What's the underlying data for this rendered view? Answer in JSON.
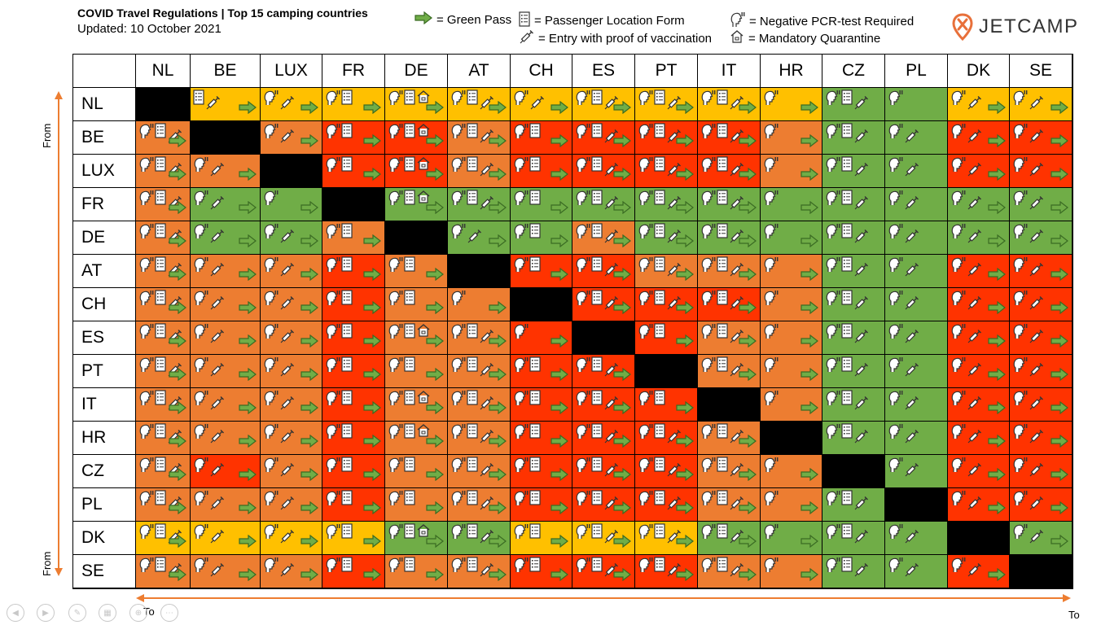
{
  "header": {
    "title": "COVID Travel Regulations | Top 15 camping countries",
    "updated": "Updated: 10 October 2021"
  },
  "legend": {
    "green_pass": "= Green Pass",
    "plf": "= Passenger Location Form",
    "vaccination": "= Entry with proof of vaccination",
    "pcr": "= Negative PCR-test Required",
    "quarantine": "= Mandatory Quarantine"
  },
  "logo": {
    "text": "JETCAMP"
  },
  "axis": {
    "from": "From",
    "to": "To"
  },
  "colors": {
    "yellow": "#FFC000",
    "orange": "#ED7D31",
    "red": "#FF3300",
    "green": "#70AD47",
    "black": "#000000",
    "arrow_fill": "#70AD47",
    "arrow_stroke": "#3A6B23",
    "logo_accent": "#E8703A"
  },
  "chart_data": {
    "type": "table",
    "title": "COVID Travel Regulations | Top 15 camping countries",
    "row_axis": "From",
    "col_axis": "To",
    "countries": [
      "NL",
      "BE",
      "LUX",
      "FR",
      "DE",
      "AT",
      "CH",
      "ES",
      "PT",
      "IT",
      "HR",
      "CZ",
      "PL",
      "DK",
      "SE"
    ],
    "color_key": {
      "Y": "yellow",
      "O": "orange",
      "R": "red",
      "G": "green",
      "X": "not applicable"
    },
    "icon_key": {
      "T": "negative PCR-test required",
      "F": "passenger location form",
      "V": "entry with proof of vaccination",
      "Q": "mandatory quarantine",
      "A": "green pass"
    },
    "rows": [
      {
        "from": "NL",
        "cells": [
          [
            "X",
            ""
          ],
          [
            "Y",
            "FVA"
          ],
          [
            "Y",
            "TVA"
          ],
          [
            "Y",
            "TFA"
          ],
          [
            "Y",
            "TFQA"
          ],
          [
            "Y",
            "TFVA"
          ],
          [
            "Y",
            "TVA"
          ],
          [
            "Y",
            "TFVA"
          ],
          [
            "Y",
            "TFVA"
          ],
          [
            "Y",
            "TFVA"
          ],
          [
            "Y",
            "TA"
          ],
          [
            "G",
            "TFV"
          ],
          [
            "G",
            "T"
          ],
          [
            "Y",
            "TVA"
          ],
          [
            "Y",
            "TVA"
          ]
        ]
      },
      {
        "from": "BE",
        "cells": [
          [
            "O",
            "TFVA"
          ],
          [
            "X",
            ""
          ],
          [
            "O",
            "TVA"
          ],
          [
            "R",
            "TFA"
          ],
          [
            "R",
            "TFQA"
          ],
          [
            "O",
            "TFVA"
          ],
          [
            "R",
            "TFA"
          ],
          [
            "R",
            "TFVA"
          ],
          [
            "R",
            "TFVA"
          ],
          [
            "R",
            "TFVA"
          ],
          [
            "O",
            "TA"
          ],
          [
            "G",
            "TFV"
          ],
          [
            "G",
            "TV"
          ],
          [
            "R",
            "TVA"
          ],
          [
            "R",
            "TVA"
          ]
        ]
      },
      {
        "from": "LUX",
        "cells": [
          [
            "O",
            "TFVA"
          ],
          [
            "O",
            "TVA"
          ],
          [
            "X",
            ""
          ],
          [
            "R",
            "TFA"
          ],
          [
            "R",
            "TFQA"
          ],
          [
            "O",
            "TFVA"
          ],
          [
            "R",
            "TFA"
          ],
          [
            "R",
            "TFVA"
          ],
          [
            "R",
            "TFVA"
          ],
          [
            "R",
            "TFVA"
          ],
          [
            "O",
            "TA"
          ],
          [
            "G",
            "TFV"
          ],
          [
            "G",
            "TV"
          ],
          [
            "R",
            "TVA"
          ],
          [
            "R",
            "TVA"
          ]
        ]
      },
      {
        "from": "FR",
        "cells": [
          [
            "O",
            "TFVA"
          ],
          [
            "G",
            "TVA"
          ],
          [
            "G",
            "TA"
          ],
          [
            "X",
            ""
          ],
          [
            "G",
            "TFQA"
          ],
          [
            "G",
            "TFVA"
          ],
          [
            "G",
            "TFA"
          ],
          [
            "G",
            "TFVA"
          ],
          [
            "G",
            "TFVA"
          ],
          [
            "G",
            "TFVA"
          ],
          [
            "G",
            "TA"
          ],
          [
            "G",
            "TFV"
          ],
          [
            "G",
            "TV"
          ],
          [
            "G",
            "TVA"
          ],
          [
            "G",
            "TVA"
          ]
        ]
      },
      {
        "from": "DE",
        "cells": [
          [
            "O",
            "TFVA"
          ],
          [
            "G",
            "TVA"
          ],
          [
            "G",
            "TVA"
          ],
          [
            "O",
            "TFA"
          ],
          [
            "X",
            ""
          ],
          [
            "G",
            "TVA"
          ],
          [
            "G",
            "TFA"
          ],
          [
            "O",
            "TFVA"
          ],
          [
            "G",
            "TFVA"
          ],
          [
            "G",
            "TFVA"
          ],
          [
            "G",
            "TA"
          ],
          [
            "G",
            "TFV"
          ],
          [
            "G",
            "TV"
          ],
          [
            "G",
            "TVA"
          ],
          [
            "G",
            "TVA"
          ]
        ]
      },
      {
        "from": "AT",
        "cells": [
          [
            "O",
            "TFVA"
          ],
          [
            "O",
            "TVA"
          ],
          [
            "O",
            "TVA"
          ],
          [
            "R",
            "TFA"
          ],
          [
            "O",
            "TFA"
          ],
          [
            "X",
            ""
          ],
          [
            "R",
            "TFA"
          ],
          [
            "R",
            "TFVA"
          ],
          [
            "O",
            "TFVA"
          ],
          [
            "O",
            "TFVA"
          ],
          [
            "O",
            "TA"
          ],
          [
            "G",
            "TFV"
          ],
          [
            "G",
            "TV"
          ],
          [
            "R",
            "TVA"
          ],
          [
            "R",
            "TVA"
          ]
        ]
      },
      {
        "from": "CH",
        "cells": [
          [
            "O",
            "TFVA"
          ],
          [
            "O",
            "TVA"
          ],
          [
            "O",
            "TVA"
          ],
          [
            "R",
            "TFA"
          ],
          [
            "O",
            "TFA"
          ],
          [
            "O",
            "TA"
          ],
          [
            "X",
            ""
          ],
          [
            "R",
            "TFVA"
          ],
          [
            "R",
            "TFVA"
          ],
          [
            "R",
            "TFVA"
          ],
          [
            "O",
            "TA"
          ],
          [
            "G",
            "TFV"
          ],
          [
            "G",
            "TV"
          ],
          [
            "R",
            "TVA"
          ],
          [
            "R",
            "TVA"
          ]
        ]
      },
      {
        "from": "ES",
        "cells": [
          [
            "O",
            "TFVA"
          ],
          [
            "O",
            "TVA"
          ],
          [
            "O",
            "TVA"
          ],
          [
            "R",
            "TFA"
          ],
          [
            "O",
            "TFQA"
          ],
          [
            "O",
            "TFVA"
          ],
          [
            "R",
            "TA"
          ],
          [
            "X",
            ""
          ],
          [
            "R",
            "TFA"
          ],
          [
            "O",
            "TFVA"
          ],
          [
            "O",
            "TA"
          ],
          [
            "G",
            "TFV"
          ],
          [
            "G",
            "TV"
          ],
          [
            "R",
            "TVA"
          ],
          [
            "R",
            "TVA"
          ]
        ]
      },
      {
        "from": "PT",
        "cells": [
          [
            "O",
            "TFVA"
          ],
          [
            "O",
            "TVA"
          ],
          [
            "O",
            "TVA"
          ],
          [
            "R",
            "TFA"
          ],
          [
            "O",
            "TFA"
          ],
          [
            "O",
            "TFVA"
          ],
          [
            "R",
            "TFA"
          ],
          [
            "R",
            "TFVA"
          ],
          [
            "X",
            ""
          ],
          [
            "O",
            "TFVA"
          ],
          [
            "O",
            "TA"
          ],
          [
            "G",
            "TFV"
          ],
          [
            "G",
            "TV"
          ],
          [
            "R",
            "TVA"
          ],
          [
            "R",
            "TVA"
          ]
        ]
      },
      {
        "from": "IT",
        "cells": [
          [
            "O",
            "TFVA"
          ],
          [
            "O",
            "TVA"
          ],
          [
            "O",
            "TVA"
          ],
          [
            "R",
            "TFA"
          ],
          [
            "O",
            "TFQA"
          ],
          [
            "O",
            "TFVA"
          ],
          [
            "R",
            "TFA"
          ],
          [
            "R",
            "TFVA"
          ],
          [
            "R",
            "TFA"
          ],
          [
            "X",
            ""
          ],
          [
            "O",
            "TA"
          ],
          [
            "G",
            "TFV"
          ],
          [
            "G",
            "TV"
          ],
          [
            "R",
            "TVA"
          ],
          [
            "R",
            "TVA"
          ]
        ]
      },
      {
        "from": "HR",
        "cells": [
          [
            "O",
            "TFVA"
          ],
          [
            "O",
            "TVA"
          ],
          [
            "O",
            "TVA"
          ],
          [
            "R",
            "TFA"
          ],
          [
            "O",
            "TFQA"
          ],
          [
            "O",
            "TFVA"
          ],
          [
            "R",
            "TFA"
          ],
          [
            "R",
            "TFVA"
          ],
          [
            "R",
            "TFVA"
          ],
          [
            "O",
            "TFVA"
          ],
          [
            "X",
            ""
          ],
          [
            "G",
            "TFV"
          ],
          [
            "G",
            "TV"
          ],
          [
            "R",
            "TVA"
          ],
          [
            "R",
            "TVA"
          ]
        ]
      },
      {
        "from": "CZ",
        "cells": [
          [
            "O",
            "TFVA"
          ],
          [
            "R",
            "TVA"
          ],
          [
            "O",
            "TVA"
          ],
          [
            "R",
            "TFA"
          ],
          [
            "O",
            "TFA"
          ],
          [
            "O",
            "TFVA"
          ],
          [
            "R",
            "TFA"
          ],
          [
            "R",
            "TFVA"
          ],
          [
            "R",
            "TFVA"
          ],
          [
            "O",
            "TFVA"
          ],
          [
            "O",
            "TA"
          ],
          [
            "X",
            ""
          ],
          [
            "G",
            "TV"
          ],
          [
            "R",
            "TVA"
          ],
          [
            "R",
            "TVA"
          ]
        ]
      },
      {
        "from": "PL",
        "cells": [
          [
            "O",
            "TFVA"
          ],
          [
            "O",
            "TVA"
          ],
          [
            "O",
            "TVA"
          ],
          [
            "R",
            "TFA"
          ],
          [
            "O",
            "TFA"
          ],
          [
            "O",
            "TFVA"
          ],
          [
            "R",
            "TFA"
          ],
          [
            "R",
            "TFVA"
          ],
          [
            "R",
            "TFVA"
          ],
          [
            "O",
            "TFVA"
          ],
          [
            "O",
            "TA"
          ],
          [
            "G",
            "TFV"
          ],
          [
            "X",
            ""
          ],
          [
            "R",
            "TVA"
          ],
          [
            "R",
            "TVA"
          ]
        ]
      },
      {
        "from": "DK",
        "cells": [
          [
            "Y",
            "TFVA"
          ],
          [
            "Y",
            "TVA"
          ],
          [
            "Y",
            "TVA"
          ],
          [
            "Y",
            "TFA"
          ],
          [
            "G",
            "TFQA"
          ],
          [
            "G",
            "TFVA"
          ],
          [
            "Y",
            "TFA"
          ],
          [
            "Y",
            "TFVA"
          ],
          [
            "Y",
            "TFVA"
          ],
          [
            "G",
            "TFVA"
          ],
          [
            "G",
            "TA"
          ],
          [
            "G",
            "TFV"
          ],
          [
            "G",
            "TV"
          ],
          [
            "X",
            ""
          ],
          [
            "G",
            "TVA"
          ]
        ]
      },
      {
        "from": "SE",
        "cells": [
          [
            "O",
            "TFVA"
          ],
          [
            "O",
            "TVA"
          ],
          [
            "O",
            "TVA"
          ],
          [
            "R",
            "TFA"
          ],
          [
            "O",
            "TFA"
          ],
          [
            "O",
            "TFVA"
          ],
          [
            "R",
            "TFA"
          ],
          [
            "R",
            "TFVA"
          ],
          [
            "R",
            "TFVA"
          ],
          [
            "O",
            "TFVA"
          ],
          [
            "O",
            "TA"
          ],
          [
            "G",
            "TFV"
          ],
          [
            "G",
            "TV"
          ],
          [
            "R",
            "TVA"
          ],
          [
            "X",
            ""
          ]
        ]
      }
    ]
  }
}
